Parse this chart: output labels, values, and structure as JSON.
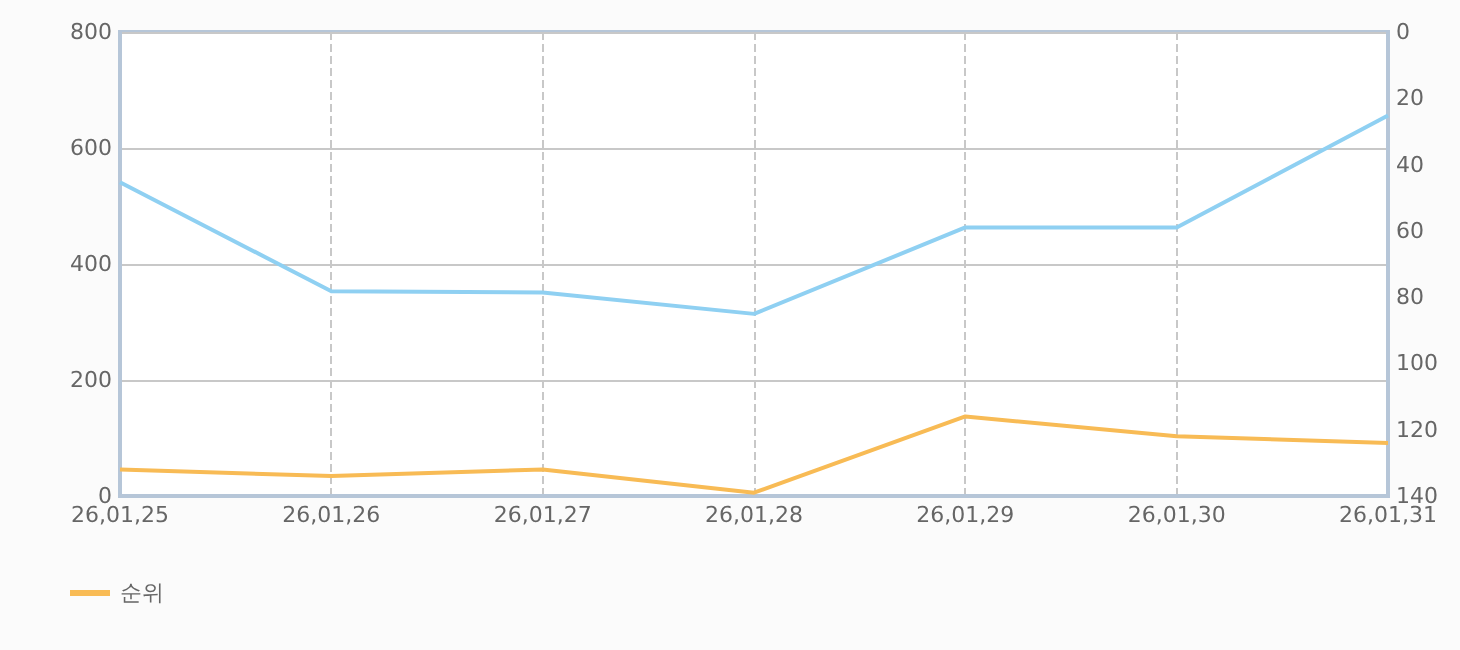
{
  "chart_data": {
    "type": "line",
    "categories": [
      "26,01,25",
      "26,01,26",
      "26,01,27",
      "26,01,28",
      "26,01,29",
      "26,01,30",
      "26,01,31"
    ],
    "series": [
      {
        "color": "#8fd0f2",
        "values": [
          541,
          353,
          351,
          314,
          463,
          463,
          656
        ]
      },
      {
        "name": "순위",
        "color": "#f8bb55",
        "axis": "y2",
        "values": [
          132,
          134,
          132,
          139,
          116,
          122,
          124
        ]
      }
    ],
    "ylim": [
      0,
      800
    ],
    "yticks": [
      0,
      200,
      400,
      600,
      800
    ],
    "y2lim": [
      140,
      0
    ],
    "y2ticks": [
      0,
      20,
      40,
      60,
      80,
      100,
      120,
      140
    ],
    "grid": true,
    "legend": "bottom left",
    "marker": "none"
  }
}
